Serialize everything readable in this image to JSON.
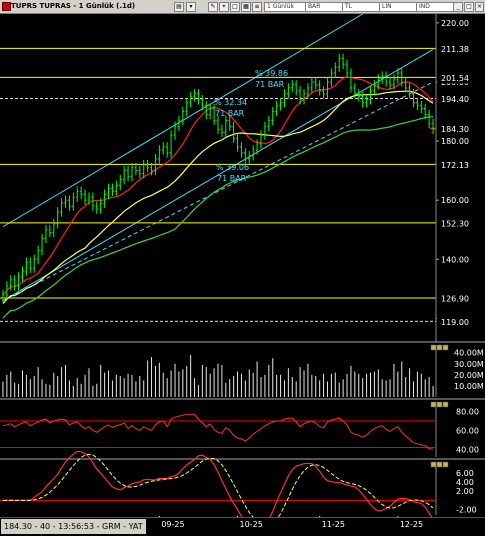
{
  "titlebar": {
    "title": "TUPRS TUPRAS - 1 Günlük (.1d)",
    "period_field": "1 Günlük",
    "fields": [
      "BAR",
      "TL",
      "LIN",
      "IND"
    ]
  },
  "status": {
    "text": "184.30 - 40 - 13:56:53 - GRM - YAT"
  },
  "colors": {
    "background": "#000000",
    "price_candle": "#00ff00",
    "ma_short": "#ff2020",
    "ma_mid": "#ffff60",
    "ma_long": "#40d040",
    "channel": "#40e0ff",
    "level": "#ffff00",
    "hline_red": "#ff0000"
  },
  "chart_data": [
    {
      "type": "candlestick",
      "title": "TUPRS TUPRAS - 1 Günlük (.1d)",
      "ylim": [
        112,
        223
      ],
      "yticks": [
        220.0,
        200.0,
        180.0,
        160.0,
        140.0,
        120.0
      ],
      "ytick_labels": [
        "220.00",
        "200.00",
        "180.00",
        "160.00",
        "140.00",
        "120.00"
      ],
      "xtick_labels": [
        "09-25",
        "10-25",
        "11-25",
        "12-25"
      ],
      "xtick_index": [
        40,
        60,
        81,
        101
      ],
      "last_price": 184.3,
      "levels": [
        {
          "value": 211.38,
          "label": "211.38"
        },
        {
          "value": 201.54,
          "label": "201.54"
        },
        {
          "value": 194.4,
          "label": "194.40"
        },
        {
          "value": 184.3,
          "label": "184.30"
        },
        {
          "value": 172.13,
          "label": "172.13"
        },
        {
          "value": 152.3,
          "label": "152.30"
        },
        {
          "value": 126.9,
          "label": "126.90"
        },
        {
          "value": 119.0,
          "label": "119.00"
        }
      ],
      "channel_annotations": [
        {
          "pct": "% 39.86",
          "bars": "71 BAR"
        },
        {
          "pct": "% 32.34",
          "bars": "71 BAR"
        },
        {
          "pct": "% 39.06",
          "bars": "71 BAR"
        }
      ],
      "close": [
        128,
        131,
        133,
        131,
        134,
        136,
        139,
        137,
        140,
        143,
        147,
        150,
        149,
        152,
        156,
        159,
        160,
        158,
        161,
        163,
        162,
        160,
        161,
        158,
        157,
        159,
        162,
        164,
        163,
        165,
        167,
        170,
        168,
        171,
        170,
        169,
        172,
        171,
        170,
        174,
        177,
        178,
        176,
        182,
        185,
        187,
        190,
        193,
        195,
        196,
        194,
        192,
        189,
        191,
        187,
        184,
        183,
        187,
        185,
        181,
        178,
        176,
        174,
        175,
        177,
        179,
        182,
        185,
        187,
        190,
        192,
        193,
        196,
        198,
        199,
        197,
        194,
        196,
        198,
        200,
        199,
        197,
        196,
        200,
        203,
        205,
        208,
        206,
        203,
        198,
        196,
        195,
        193,
        194,
        197,
        199,
        201,
        202,
        200,
        199,
        201,
        203,
        200,
        198,
        196,
        193,
        192,
        191,
        189,
        186,
        184
      ],
      "volume_ylim": [
        0,
        47
      ],
      "volume_yticks": [
        40.0,
        30.0,
        20.0,
        10.0
      ],
      "volume_ytick_labels": [
        "40.00M",
        "30.00M",
        "20.00M",
        "10.00M"
      ],
      "volume": [
        14,
        20,
        23,
        13,
        12,
        24,
        20,
        16,
        19,
        27,
        16,
        12,
        11,
        22,
        19,
        27,
        29,
        15,
        10,
        17,
        12,
        20,
        26,
        10,
        12,
        29,
        22,
        24,
        15,
        20,
        19,
        17,
        21,
        20,
        14,
        19,
        15,
        33,
        36,
        28,
        31,
        22,
        17,
        24,
        30,
        23,
        25,
        28,
        38,
        17,
        11,
        29,
        27,
        21,
        26,
        30,
        29,
        13,
        16,
        19,
        23,
        21,
        15,
        25,
        22,
        32,
        18,
        20,
        29,
        35,
        20,
        20,
        15,
        26,
        18,
        14,
        27,
        24,
        30,
        20,
        19,
        15,
        21,
        14,
        21,
        22,
        13,
        16,
        21,
        28,
        23,
        21,
        17,
        21,
        22,
        23,
        25,
        16,
        15,
        16,
        30,
        23,
        32,
        18,
        26,
        14,
        23,
        21,
        16,
        18,
        10
      ],
      "rsi_ylim": [
        32,
        90
      ],
      "rsi_yticks": [
        80.0,
        60.0,
        40.0
      ],
      "rsi_ytick_labels": [
        "80.00",
        "60.00",
        "40.00"
      ],
      "rsi_levels": [
        70,
        42
      ],
      "rsi": [
        65,
        66,
        67,
        64,
        66,
        68,
        69,
        65,
        67,
        69,
        71,
        72,
        68,
        70,
        71,
        72,
        71,
        66,
        68,
        69,
        65,
        62,
        64,
        60,
        58,
        61,
        64,
        66,
        63,
        65,
        66,
        68,
        62,
        65,
        62,
        60,
        64,
        62,
        60,
        66,
        69,
        70,
        64,
        72,
        74,
        75,
        76,
        77,
        77,
        77,
        72,
        68,
        64,
        67,
        61,
        58,
        57,
        63,
        60,
        55,
        52,
        51,
        49,
        52,
        56,
        59,
        62,
        65,
        67,
        69,
        70,
        70,
        72,
        73,
        73,
        69,
        64,
        67,
        69,
        70,
        68,
        64,
        63,
        69,
        71,
        72,
        73,
        70,
        66,
        58,
        56,
        55,
        53,
        55,
        59,
        62,
        64,
        65,
        61,
        59,
        62,
        64,
        58,
        54,
        51,
        47,
        46,
        45,
        44,
        41,
        40
      ],
      "macd_ylim": [
        -3.2,
        8.4
      ],
      "macd_yticks": [
        6.0,
        4.0,
        2.0,
        -2.0
      ],
      "macd_ytick_labels": [
        "6.00",
        "4.00",
        "2.00",
        "-2.00"
      ],
      "macd_level": 0
    }
  ]
}
